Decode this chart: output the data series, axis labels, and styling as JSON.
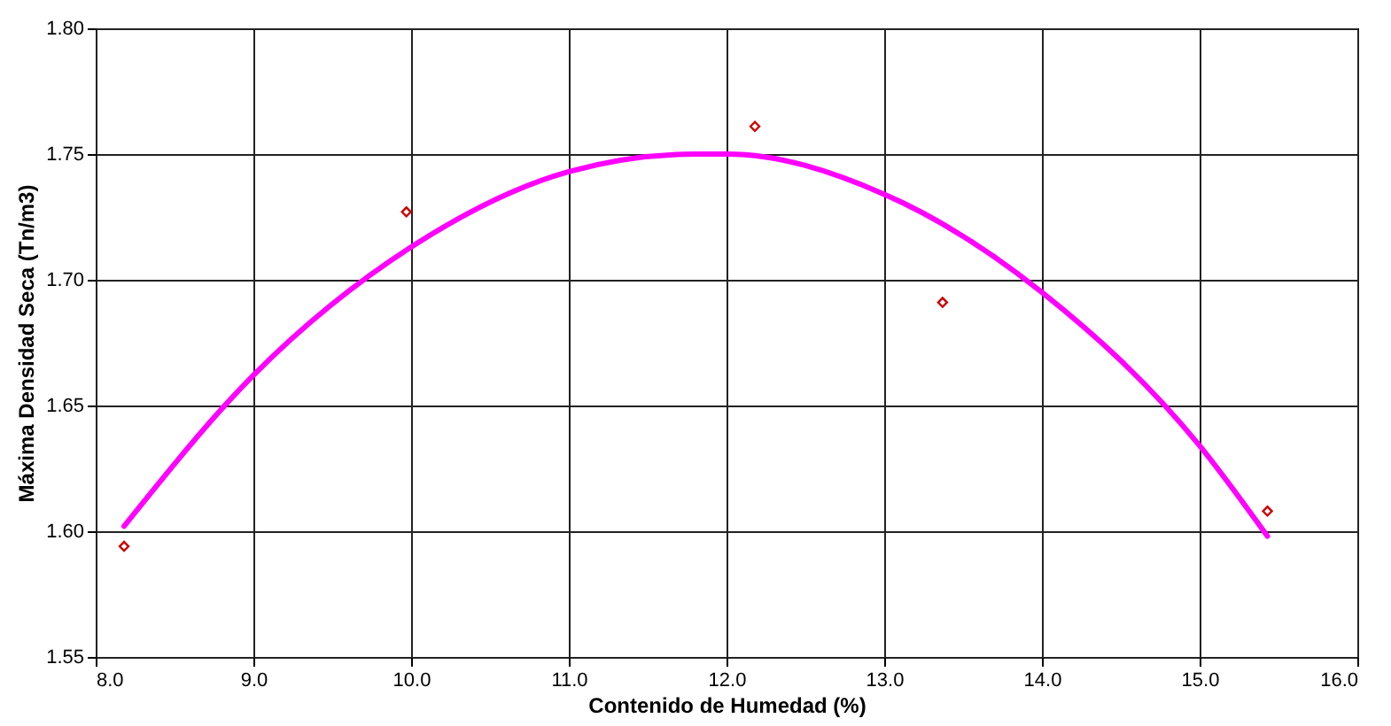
{
  "chart_data": {
    "type": "scatter",
    "xlabel": "Contenido de Humedad (%)",
    "ylabel": "Máxima Densidad Seca (Tn/m3)",
    "xlim": [
      8,
      16
    ],
    "ylim": [
      1.55,
      1.8
    ],
    "xticks": [
      {
        "value": 8,
        "label": "8.0"
      },
      {
        "value": 9,
        "label": "9.0"
      },
      {
        "value": 10,
        "label": "10.0"
      },
      {
        "value": 11,
        "label": "11.0"
      },
      {
        "value": 12,
        "label": "12.0"
      },
      {
        "value": 13,
        "label": "13.0"
      },
      {
        "value": 14,
        "label": "14.0"
      },
      {
        "value": 15,
        "label": "15.0"
      },
      {
        "value": 16,
        "label": "16.0"
      }
    ],
    "yticks": [
      {
        "value": 1.55,
        "label": "1.55"
      },
      {
        "value": 1.6,
        "label": "1.60"
      },
      {
        "value": 1.65,
        "label": "1.65"
      },
      {
        "value": 1.7,
        "label": "1.70"
      },
      {
        "value": 1.75,
        "label": "1.75"
      },
      {
        "value": 1.8,
        "label": "1.80"
      }
    ],
    "grid": true,
    "series": [
      {
        "marker": "diamond",
        "color": "#cc0000",
        "x": [
          8.18,
          9.97,
          12.18,
          13.37,
          15.43
        ],
        "values": [
          1.594,
          1.727,
          1.761,
          1.691,
          1.608
        ]
      },
      {
        "type": "line",
        "marker": "none",
        "line_style": "solid",
        "color": "#ff00ff",
        "x": [
          8.18,
          9,
          10,
          11,
          11.8,
          12,
          13,
          14,
          15,
          15.43
        ],
        "values": [
          1.602,
          1.662,
          1.713,
          1.743,
          1.75,
          1.75,
          1.734,
          1.695,
          1.634,
          1.598
        ]
      }
    ]
  }
}
